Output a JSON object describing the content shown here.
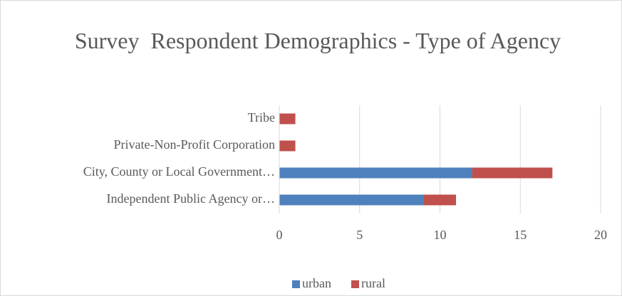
{
  "chart_data": {
    "type": "bar",
    "orientation": "horizontal",
    "stacked": true,
    "title": "Survey  Respondent Demographics - Type of Agency",
    "categories": [
      "Tribe",
      "Private-Non-Profit Corporation",
      "City, County or Local Government…",
      "Independent Public Agency or…"
    ],
    "series": [
      {
        "name": "urban",
        "color": "#4f81bd",
        "values": [
          0,
          0,
          12,
          9
        ]
      },
      {
        "name": "rural",
        "color": "#c0504d",
        "values": [
          1,
          1,
          5,
          2
        ]
      }
    ],
    "xlim": [
      0,
      20
    ],
    "xticks": [
      0,
      5,
      10,
      15,
      20
    ],
    "grid": true,
    "legend": "bottom"
  }
}
